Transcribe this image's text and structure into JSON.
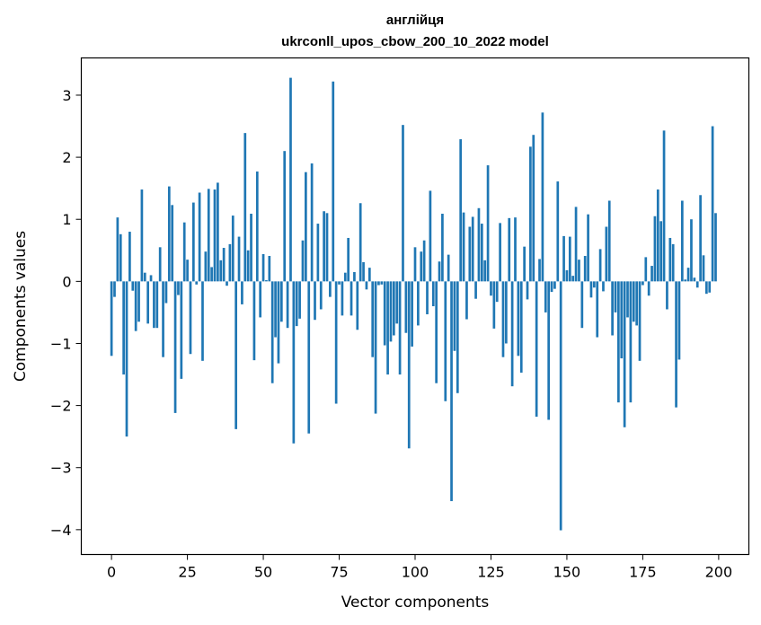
{
  "chart_data": {
    "type": "bar",
    "title": "англійця",
    "subtitle": "ukrconll_upos_cbow_200_10_2022 model",
    "xlabel": "Vector components",
    "ylabel": "Components values",
    "xlim": [
      -9.95,
      209.95
    ],
    "ylim": [
      -4.4,
      3.6
    ],
    "xticks": [
      0,
      25,
      50,
      75,
      100,
      125,
      150,
      175,
      200
    ],
    "yticks": [
      -4,
      -3,
      -2,
      -1,
      0,
      1,
      2,
      3
    ],
    "grid": false,
    "bar_color": "#1f77b4",
    "x": [
      0,
      1,
      2,
      3,
      4,
      5,
      6,
      7,
      8,
      9,
      10,
      11,
      12,
      13,
      14,
      15,
      16,
      17,
      18,
      19,
      20,
      21,
      22,
      23,
      24,
      25,
      26,
      27,
      28,
      29,
      30,
      31,
      32,
      33,
      34,
      35,
      36,
      37,
      38,
      39,
      40,
      41,
      42,
      43,
      44,
      45,
      46,
      47,
      48,
      49,
      50,
      51,
      52,
      53,
      54,
      55,
      56,
      57,
      58,
      59,
      60,
      61,
      62,
      63,
      64,
      65,
      66,
      67,
      68,
      69,
      70,
      71,
      72,
      73,
      74,
      75,
      76,
      77,
      78,
      79,
      80,
      81,
      82,
      83,
      84,
      85,
      86,
      87,
      88,
      89,
      90,
      91,
      92,
      93,
      94,
      95,
      96,
      97,
      98,
      99,
      100,
      101,
      102,
      103,
      104,
      105,
      106,
      107,
      108,
      109,
      110,
      111,
      112,
      113,
      114,
      115,
      116,
      117,
      118,
      119,
      120,
      121,
      122,
      123,
      124,
      125,
      126,
      127,
      128,
      129,
      130,
      131,
      132,
      133,
      134,
      135,
      136,
      137,
      138,
      139,
      140,
      141,
      142,
      143,
      144,
      145,
      146,
      147,
      148,
      149,
      150,
      151,
      152,
      153,
      154,
      155,
      156,
      157,
      158,
      159,
      160,
      161,
      162,
      163,
      164,
      165,
      166,
      167,
      168,
      169,
      170,
      171,
      172,
      173,
      174,
      175,
      176,
      177,
      178,
      179,
      180,
      181,
      182,
      183,
      184,
      185,
      186,
      187,
      188,
      189,
      190,
      191,
      192,
      193,
      194,
      195,
      196,
      197,
      198,
      199
    ],
    "values": [
      -1.2,
      -0.25,
      1.03,
      0.76,
      -1.5,
      -2.5,
      0.8,
      -0.15,
      -0.8,
      -0.65,
      1.48,
      0.14,
      -0.68,
      0.1,
      -0.75,
      -0.75,
      0.55,
      -1.22,
      -0.35,
      1.53,
      1.23,
      -2.12,
      -0.22,
      -1.57,
      0.95,
      0.35,
      -1.17,
      1.27,
      -0.05,
      1.43,
      -1.28,
      0.48,
      1.49,
      0.23,
      1.48,
      1.59,
      0.34,
      0.54,
      -0.07,
      0.6,
      1.06,
      -2.38,
      0.72,
      -0.37,
      2.39,
      0.5,
      1.09,
      -1.27,
      1.77,
      -0.58,
      0.44,
      0.02,
      0.41,
      -1.64,
      -0.9,
      -1.32,
      -0.65,
      2.1,
      -0.75,
      3.28,
      -2.61,
      -0.72,
      -0.6,
      0.66,
      1.76,
      -2.45,
      1.9,
      -0.62,
      0.93,
      -0.45,
      1.13,
      1.1,
      -0.25,
      3.22,
      -1.97,
      -0.05,
      -0.55,
      0.14,
      0.7,
      -0.55,
      0.15,
      -0.78,
      1.26,
      0.31,
      -0.13,
      0.22,
      -1.22,
      -2.13,
      -0.06,
      -0.05,
      -1.03,
      -1.5,
      -0.97,
      -0.87,
      -0.68,
      -1.5,
      2.52,
      -0.83,
      -2.69,
      -1.05,
      0.55,
      -0.71,
      0.48,
      0.66,
      -0.53,
      1.46,
      -0.4,
      -1.64,
      0.32,
      1.09,
      -1.93,
      0.43,
      -3.54,
      -1.12,
      -1.8,
      2.29,
      1.11,
      -0.61,
      0.88,
      1.04,
      -0.28,
      1.18,
      0.93,
      0.34,
      1.87,
      -0.23,
      -0.76,
      -0.33,
      0.94,
      -1.22,
      -1.0,
      1.02,
      -1.69,
      1.03,
      -1.2,
      -1.47,
      0.56,
      -0.29,
      2.17,
      2.36,
      -2.18,
      0.36,
      2.72,
      -0.5,
      -2.23,
      -0.17,
      -0.12,
      1.61,
      -4.01,
      0.73,
      0.18,
      0.72,
      0.09,
      1.2,
      0.35,
      -0.75,
      0.41,
      1.08,
      -0.26,
      -0.1,
      -0.9,
      0.52,
      -0.16,
      0.88,
      1.3,
      -0.87,
      -0.5,
      -1.95,
      -1.24,
      -2.35,
      -0.58,
      -1.95,
      -0.65,
      -0.71,
      -1.28,
      -0.06,
      0.39,
      -0.23,
      0.25,
      1.05,
      1.48,
      0.97,
      2.43,
      -0.45,
      0.7,
      0.6,
      -2.03,
      -1.26,
      1.3,
      0.03,
      0.22,
      1.0,
      0.06,
      -0.1,
      1.39,
      0.42,
      -0.2,
      -0.18,
      2.5,
      1.1
    ]
  }
}
